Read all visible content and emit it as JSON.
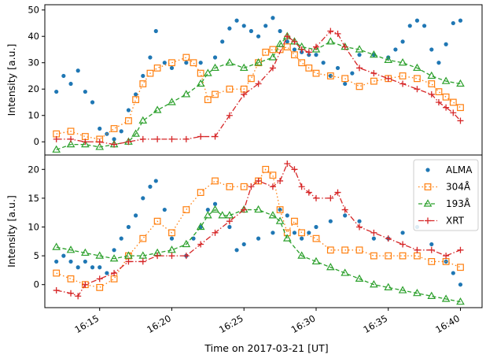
{
  "chart_data": {
    "type": "line",
    "xlabel": "Time on 2017-03-21 [UT]",
    "x_ticks": [
      "16:15",
      "16:20",
      "16:25",
      "16:30",
      "16:35",
      "16:40"
    ],
    "x_tick_minutes": [
      15,
      20,
      25,
      30,
      35,
      40
    ],
    "xlim": [
      11.2,
      41.5
    ],
    "legend": {
      "placement": "upper right of lower panel"
    },
    "panels": [
      {
        "ylabel": "Intensity [a.u.]",
        "ylim": [
          -5,
          52
        ],
        "y_ticks": [
          0,
          10,
          20,
          30,
          40,
          50
        ],
        "series": [
          {
            "name": "ALMA",
            "color": "#1f77b4",
            "marker": "dot",
            "x": [
              12.0,
              12.5,
              13.0,
              13.5,
              14.0,
              14.5,
              15.0,
              15.5,
              16.0,
              16.5,
              17.0,
              17.5,
              18.0,
              18.5,
              18.9,
              19.5,
              20.0,
              21.0,
              22.0,
              23.0,
              23.5,
              24.0,
              24.5,
              25.0,
              25.5,
              26.0,
              26.5,
              27.0,
              27.5,
              28.0,
              28.5,
              29.0,
              29.5,
              30.0,
              30.5,
              31.0,
              31.5,
              32.0,
              32.5,
              33.0,
              34.0,
              35.0,
              35.5,
              36.0,
              36.5,
              37.0,
              37.5,
              38.0,
              38.5,
              39.0,
              39.5,
              40.0
            ],
            "y": [
              19,
              25,
              22,
              27,
              19,
              15,
              5,
              3,
              1,
              4,
              12,
              18,
              25,
              32,
              42,
              30,
              28,
              30,
              30,
              32,
              38,
              43,
              46,
              44,
              42,
              40,
              44,
              47,
              42,
              38,
              35,
              34,
              33,
              33,
              30,
              25,
              28,
              22,
              26,
              33,
              33,
              32,
              35,
              38,
              44,
              46,
              44,
              35,
              30,
              37,
              45,
              46
            ]
          },
          {
            "name": "304Å",
            "color": "#ff7f0e",
            "marker": "square",
            "x": [
              12.0,
              13.0,
              14.0,
              15.0,
              16.0,
              17.0,
              17.5,
              18.0,
              18.5,
              19.0,
              20.0,
              21.0,
              21.5,
              22.0,
              22.5,
              23.0,
              24.0,
              25.0,
              25.5,
              26.0,
              26.5,
              27.0,
              27.5,
              28.0,
              28.5,
              29.0,
              29.5,
              30.0,
              31.0,
              32.0,
              33.0,
              34.0,
              35.0,
              36.0,
              37.0,
              38.0,
              38.5,
              39.0,
              39.5,
              40.0
            ],
            "y": [
              3,
              4,
              2,
              1,
              5,
              8,
              16,
              22,
              26,
              28,
              30,
              32,
              30,
              26,
              16,
              18,
              20,
              20,
              24,
              30,
              34,
              35,
              35,
              36,
              33,
              30,
              28,
              26,
              25,
              24,
              21,
              23,
              24,
              25,
              24,
              22,
              19,
              17,
              15,
              13
            ]
          },
          {
            "name": "193Å",
            "color": "#2ca02c",
            "marker": "triangle",
            "x": [
              12.0,
              13.0,
              14.0,
              15.0,
              16.0,
              17.0,
              17.5,
              18.0,
              19.0,
              20.0,
              21.0,
              22.0,
              22.5,
              23.0,
              24.0,
              25.0,
              26.0,
              27.0,
              27.5,
              28.0,
              28.5,
              29.0,
              30.0,
              31.0,
              32.0,
              33.0,
              34.0,
              35.0,
              36.0,
              37.0,
              38.0,
              39.0,
              40.0
            ],
            "y": [
              -3,
              -1,
              -1,
              -2,
              -1,
              0,
              3,
              8,
              12,
              15,
              18,
              22,
              26,
              28,
              30,
              28,
              30,
              32,
              37,
              40,
              38,
              36,
              35,
              38,
              36,
              35,
              33,
              31,
              30,
              28,
              25,
              23,
              22
            ]
          },
          {
            "name": "XRT",
            "color": "#d62728",
            "marker": "plus",
            "x": [
              12.0,
              13.0,
              14.0,
              15.0,
              16.0,
              17.0,
              18.0,
              19.0,
              20.0,
              21.0,
              22.0,
              23.0,
              24.0,
              25.0,
              26.0,
              27.0,
              28.0,
              28.5,
              29.0,
              29.5,
              30.0,
              31.0,
              31.5,
              32.0,
              33.0,
              34.0,
              35.0,
              36.0,
              37.0,
              38.0,
              38.5,
              39.0,
              39.5,
              40.0
            ],
            "y": [
              1,
              1,
              0,
              0,
              -1,
              0,
              1,
              1,
              1,
              1,
              2,
              2,
              10,
              18,
              22,
              28,
              40,
              38,
              35,
              34,
              36,
              42,
              41,
              36,
              28,
              26,
              24,
              22,
              20,
              18,
              15,
              13,
              11,
              8
            ]
          }
        ]
      },
      {
        "ylabel": "Intensity [a.u.]",
        "ylim": [
          -4,
          22.5
        ],
        "y_ticks": [
          0,
          5,
          10,
          15,
          20
        ],
        "series": [
          {
            "name": "ALMA",
            "color": "#1f77b4",
            "marker": "dot",
            "x": [
              12.0,
              12.5,
              13.0,
              13.5,
              14.0,
              14.5,
              15.0,
              15.5,
              16.0,
              16.5,
              17.0,
              17.5,
              18.0,
              18.5,
              18.9,
              19.5,
              20.0,
              21.0,
              21.5,
              22.0,
              22.5,
              23.0,
              24.0,
              24.5,
              25.0,
              26.0,
              27.0,
              27.5,
              28.0,
              28.5,
              29.0,
              29.5,
              30.0,
              31.0,
              32.0,
              33.0,
              34.0,
              35.0,
              36.0,
              37.0,
              38.0,
              39.0,
              39.5,
              40.0
            ],
            "y": [
              4,
              5,
              4,
              3,
              4,
              3,
              3,
              2,
              6,
              8,
              10,
              12,
              15,
              17,
              18,
              13,
              8,
              5,
              8,
              10,
              13,
              14,
              10,
              6,
              7,
              8,
              9,
              13,
              12,
              9,
              8,
              9,
              10,
              11,
              12,
              11,
              8,
              8,
              9,
              10,
              7,
              4,
              2,
              0
            ]
          },
          {
            "name": "304Å",
            "color": "#ff7f0e",
            "marker": "square",
            "x": [
              12.0,
              13.0,
              14.0,
              15.0,
              16.0,
              17.0,
              18.0,
              19.0,
              20.0,
              21.0,
              22.0,
              23.0,
              24.0,
              25.0,
              26.0,
              26.5,
              27.0,
              27.5,
              28.0,
              28.5,
              29.0,
              30.0,
              31.0,
              32.0,
              33.0,
              34.0,
              35.0,
              36.0,
              37.0,
              38.0,
              39.0,
              40.0
            ],
            "y": [
              2,
              1,
              0,
              -0.5,
              1,
              5,
              8,
              11,
              9,
              13,
              16,
              18,
              17,
              17,
              18,
              20,
              19,
              13,
              9,
              11,
              9,
              8,
              6,
              6,
              6,
              5,
              5,
              5,
              5,
              4,
              4,
              3
            ]
          },
          {
            "name": "193Å",
            "color": "#2ca02c",
            "marker": "triangle",
            "x": [
              12.0,
              13.0,
              14.0,
              15.0,
              16.0,
              17.0,
              18.0,
              19.0,
              20.0,
              21.0,
              22.0,
              22.5,
              23.0,
              23.5,
              24.0,
              25.0,
              26.0,
              27.0,
              27.5,
              28.0,
              29.0,
              30.0,
              31.0,
              32.0,
              33.0,
              34.0,
              35.0,
              36.0,
              37.0,
              38.0,
              39.0,
              40.0
            ],
            "y": [
              6.5,
              6,
              5.5,
              5,
              4.5,
              5,
              5,
              5.5,
              6,
              7,
              10,
              12,
              13,
              12,
              12,
              13,
              13,
              12,
              11,
              8,
              5,
              4,
              3,
              2,
              1,
              0,
              -0.5,
              -1,
              -1.5,
              -2,
              -2.5,
              -3
            ]
          },
          {
            "name": "XRT",
            "color": "#d62728",
            "marker": "plus",
            "x": [
              12.0,
              13.0,
              13.5,
              14.0,
              15.0,
              16.0,
              17.0,
              18.0,
              19.0,
              20.0,
              21.0,
              22.0,
              23.0,
              24.0,
              25.0,
              25.5,
              26.0,
              27.0,
              27.5,
              28.0,
              28.5,
              29.0,
              29.5,
              30.0,
              31.0,
              31.5,
              32.0,
              33.0,
              34.0,
              35.0,
              36.0,
              37.0,
              38.0,
              39.0,
              40.0
            ],
            "y": [
              -1,
              -1.5,
              -2,
              0,
              1,
              2,
              4,
              4,
              5,
              5,
              5,
              7,
              9,
              11,
              13,
              17,
              18,
              17,
              18,
              21,
              20,
              17,
              16,
              15,
              15,
              16,
              13,
              10,
              9,
              8,
              7,
              6,
              6,
              5,
              6
            ]
          }
        ]
      }
    ]
  }
}
